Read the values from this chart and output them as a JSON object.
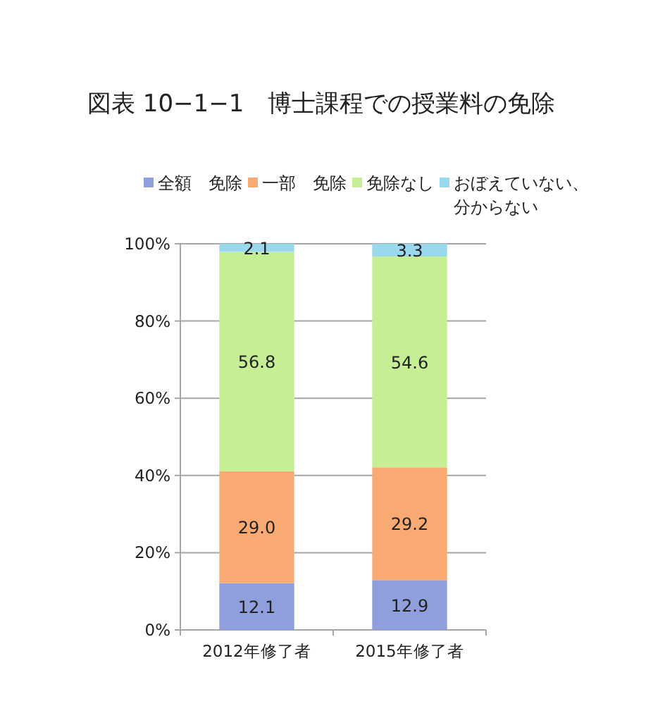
{
  "chart_data": {
    "type": "bar",
    "title": "図表 10−1−1　博士課程での授業料の免除",
    "categories": [
      "2012年修了者",
      "2015年修了者"
    ],
    "series": [
      {
        "name": "全額　免除",
        "color": "#8e9fdc",
        "values": [
          12.1,
          12.9
        ],
        "value_labels": [
          "12.1",
          "12.9"
        ]
      },
      {
        "name": "一部　免除",
        "color": "#f9aa72",
        "values": [
          29.0,
          29.2
        ],
        "value_labels": [
          "29.0",
          "29.2"
        ]
      },
      {
        "name": "免除なし",
        "color": "#c6ee95",
        "values": [
          56.8,
          54.6
        ],
        "value_labels": [
          "56.8",
          "54.6"
        ]
      },
      {
        "name": "おぼえていない、分からない",
        "color": "#9ad8ee",
        "values": [
          2.1,
          3.3
        ],
        "value_labels": [
          "2.1",
          "3.3"
        ]
      }
    ],
    "stacked": true,
    "ylim": [
      0,
      100
    ],
    "yticks": [
      {
        "value": 0,
        "label": "0%"
      },
      {
        "value": 20,
        "label": "20%"
      },
      {
        "value": 40,
        "label": "40%"
      },
      {
        "value": 60,
        "label": "60%"
      },
      {
        "value": 80,
        "label": "80%"
      },
      {
        "value": 100,
        "label": "100%"
      }
    ],
    "grid": "y",
    "legend": "top"
  }
}
